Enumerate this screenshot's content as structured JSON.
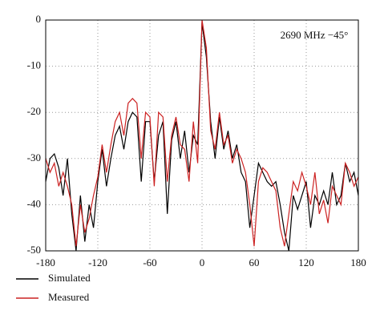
{
  "chart_data": {
    "type": "line",
    "annotation": "2690 MHz −45°",
    "x": [
      -180,
      -175,
      -170,
      -165,
      -160,
      -155,
      -150,
      -145,
      -140,
      -135,
      -130,
      -125,
      -120,
      -115,
      -110,
      -105,
      -100,
      -95,
      -90,
      -85,
      -80,
      -75,
      -70,
      -65,
      -60,
      -55,
      -50,
      -45,
      -40,
      -35,
      -30,
      -25,
      -20,
      -15,
      -10,
      -5,
      0,
      5,
      10,
      15,
      20,
      25,
      30,
      35,
      40,
      45,
      50,
      55,
      60,
      65,
      70,
      75,
      80,
      85,
      90,
      95,
      100,
      105,
      110,
      115,
      120,
      125,
      130,
      135,
      140,
      145,
      150,
      155,
      160,
      165,
      170,
      175,
      180
    ],
    "series": [
      {
        "name": "Simulated",
        "color": "#000000",
        "values": [
          -35,
          -30,
          -29,
          -32,
          -38,
          -30,
          -42,
          -50,
          -38,
          -48,
          -40,
          -45,
          -35,
          -28,
          -36,
          -30,
          -25,
          -23,
          -28,
          -22,
          -20,
          -21,
          -35,
          -22,
          -22,
          -35,
          -25,
          -22,
          -42,
          -26,
          -22,
          -30,
          -24,
          -33,
          -25,
          -27,
          -0.5,
          -8,
          -22,
          -30,
          -21,
          -28,
          -24,
          -30,
          -27,
          -33,
          -35,
          -45,
          -38,
          -31,
          -33,
          -35,
          -36,
          -35,
          -40,
          -46,
          -50,
          -38,
          -41,
          -38,
          -35,
          -45,
          -38,
          -40,
          -37,
          -40,
          -33,
          -40,
          -38,
          -31,
          -35,
          -33,
          -38
        ]
      },
      {
        "name": "Measured",
        "color": "#cc2222",
        "values": [
          -30,
          -33,
          -31,
          -36,
          -33,
          -36,
          -40,
          -49,
          -40,
          -46,
          -43,
          -38,
          -34,
          -27,
          -33,
          -27,
          -22,
          -20,
          -25,
          -18,
          -17,
          -18,
          -30,
          -20,
          -21,
          -36,
          -20,
          -21,
          -35,
          -25,
          -21,
          -27,
          -28,
          -35,
          -22,
          -31,
          0,
          -6,
          -24,
          -28,
          -20,
          -27,
          -25,
          -31,
          -28,
          -30,
          -33,
          -40,
          -49,
          -35,
          -32,
          -33,
          -35,
          -37,
          -45,
          -49,
          -42,
          -35,
          -37,
          -33,
          -36,
          -40,
          -33,
          -42,
          -39,
          -44,
          -36,
          -38,
          -40,
          -31,
          -33,
          -36,
          -34
        ]
      }
    ],
    "xlim": [
      -180,
      180
    ],
    "ylim": [
      -50,
      0
    ],
    "xticks": [
      -180,
      -120,
      -60,
      0,
      60,
      120,
      180
    ],
    "yticks": [
      -50,
      -40,
      -30,
      -20,
      -10,
      0
    ],
    "grid": true
  }
}
